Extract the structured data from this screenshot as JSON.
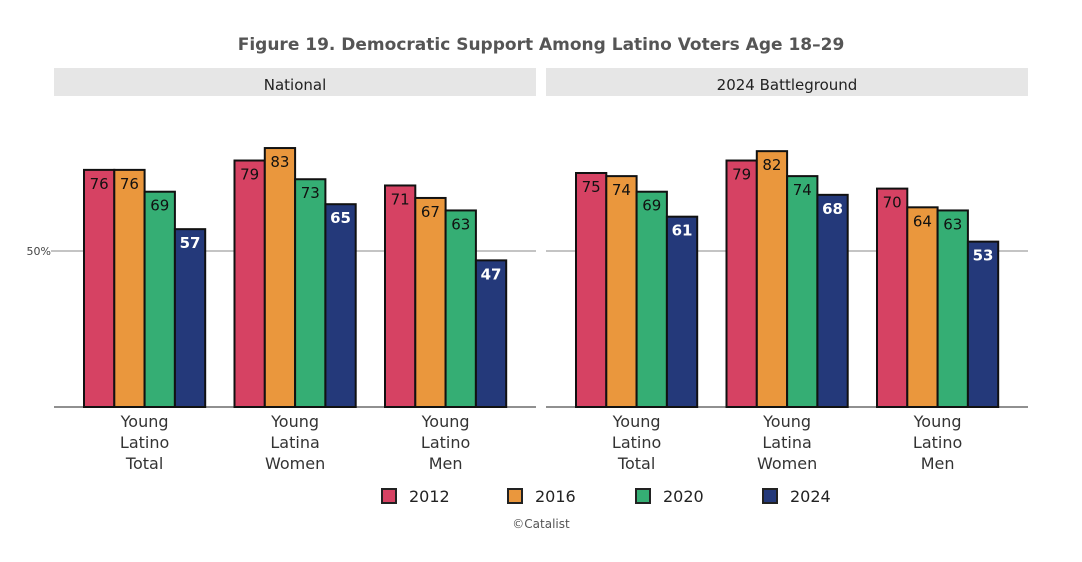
{
  "chart_data": {
    "type": "bar",
    "title": "Figure 19. Democratic Support Among Latino Voters Age 18–29",
    "caption": "©Catalist",
    "ylim": [
      0,
      100
    ],
    "yticks": [
      {
        "value": 50,
        "label": "50%"
      }
    ],
    "legend_position": "bottom",
    "categories": [
      [
        "Young",
        "Latino",
        "Total"
      ],
      [
        "Young",
        "Latina",
        "Women"
      ],
      [
        "Young",
        "Latino",
        "Men"
      ]
    ],
    "series_names": [
      "2012",
      "2016",
      "2020",
      "2024"
    ],
    "colors": [
      "#d64263",
      "#ea973d",
      "#35ae74",
      "#24397a"
    ],
    "label_colors": [
      "#111111",
      "#111111",
      "#111111",
      "#ffffff"
    ],
    "panels": [
      {
        "name": "National",
        "values": [
          [
            76,
            76,
            69,
            57
          ],
          [
            79,
            83,
            73,
            65
          ],
          [
            71,
            67,
            63,
            47
          ]
        ]
      },
      {
        "name": "2024 Battleground",
        "values": [
          [
            75,
            74,
            69,
            61
          ],
          [
            79,
            82,
            74,
            68
          ],
          [
            70,
            64,
            63,
            53
          ]
        ]
      }
    ]
  }
}
